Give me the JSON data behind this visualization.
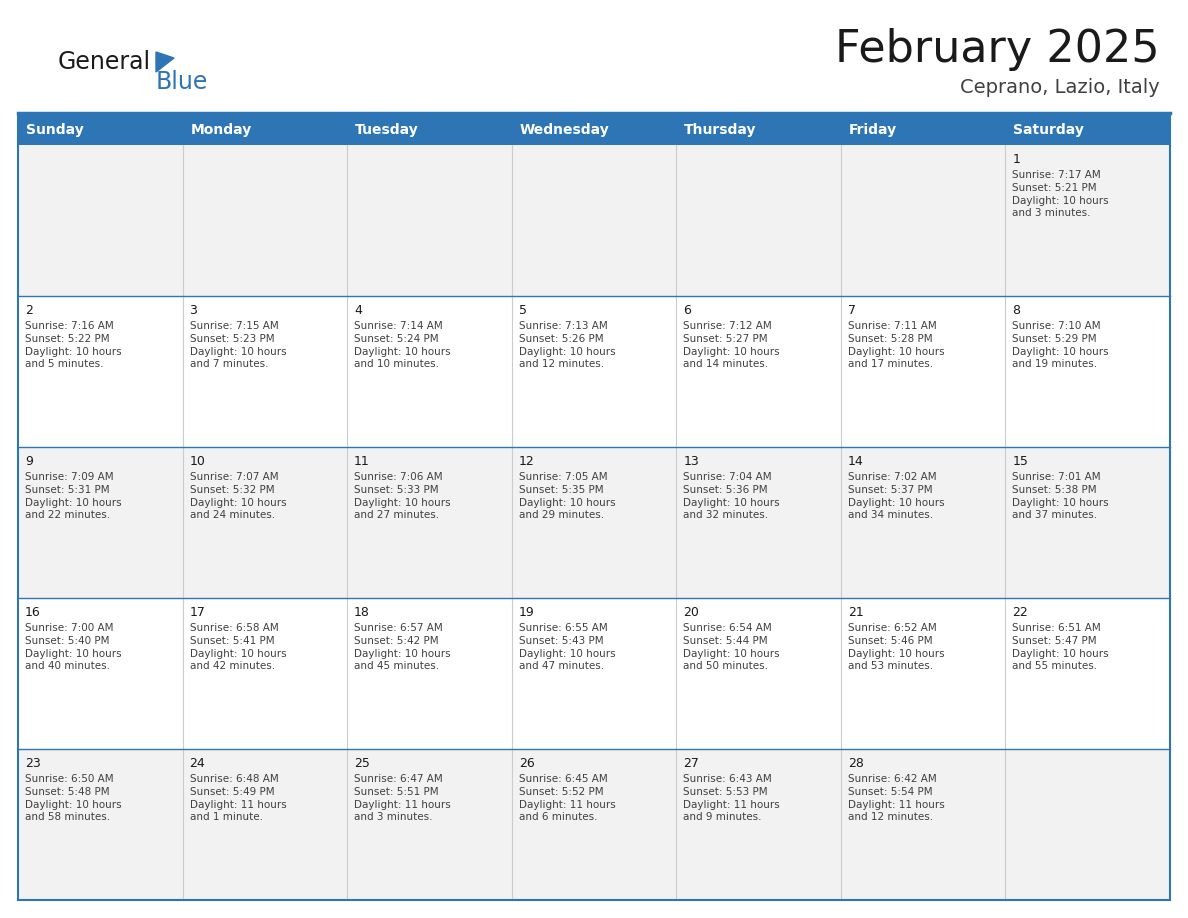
{
  "title": "February 2025",
  "subtitle": "Ceprano, Lazio, Italy",
  "header_bg": "#2E75B6",
  "header_text": "#FFFFFF",
  "row0_bg": "#F2F2F2",
  "row1_bg": "#FFFFFF",
  "row2_bg": "#F2F2F2",
  "row3_bg": "#FFFFFF",
  "row4_bg": "#F2F2F2",
  "border_color": "#2E75B6",
  "cell_border_color": "#C0C0C0",
  "day_headers": [
    "Sunday",
    "Monday",
    "Tuesday",
    "Wednesday",
    "Thursday",
    "Friday",
    "Saturday"
  ],
  "days": [
    {
      "day": 1,
      "col": 6,
      "row": 0,
      "sunrise": "7:17 AM",
      "sunset": "5:21 PM",
      "daylight": "10 hours\nand 3 minutes."
    },
    {
      "day": 2,
      "col": 0,
      "row": 1,
      "sunrise": "7:16 AM",
      "sunset": "5:22 PM",
      "daylight": "10 hours\nand 5 minutes."
    },
    {
      "day": 3,
      "col": 1,
      "row": 1,
      "sunrise": "7:15 AM",
      "sunset": "5:23 PM",
      "daylight": "10 hours\nand 7 minutes."
    },
    {
      "day": 4,
      "col": 2,
      "row": 1,
      "sunrise": "7:14 AM",
      "sunset": "5:24 PM",
      "daylight": "10 hours\nand 10 minutes."
    },
    {
      "day": 5,
      "col": 3,
      "row": 1,
      "sunrise": "7:13 AM",
      "sunset": "5:26 PM",
      "daylight": "10 hours\nand 12 minutes."
    },
    {
      "day": 6,
      "col": 4,
      "row": 1,
      "sunrise": "7:12 AM",
      "sunset": "5:27 PM",
      "daylight": "10 hours\nand 14 minutes."
    },
    {
      "day": 7,
      "col": 5,
      "row": 1,
      "sunrise": "7:11 AM",
      "sunset": "5:28 PM",
      "daylight": "10 hours\nand 17 minutes."
    },
    {
      "day": 8,
      "col": 6,
      "row": 1,
      "sunrise": "7:10 AM",
      "sunset": "5:29 PM",
      "daylight": "10 hours\nand 19 minutes."
    },
    {
      "day": 9,
      "col": 0,
      "row": 2,
      "sunrise": "7:09 AM",
      "sunset": "5:31 PM",
      "daylight": "10 hours\nand 22 minutes."
    },
    {
      "day": 10,
      "col": 1,
      "row": 2,
      "sunrise": "7:07 AM",
      "sunset": "5:32 PM",
      "daylight": "10 hours\nand 24 minutes."
    },
    {
      "day": 11,
      "col": 2,
      "row": 2,
      "sunrise": "7:06 AM",
      "sunset": "5:33 PM",
      "daylight": "10 hours\nand 27 minutes."
    },
    {
      "day": 12,
      "col": 3,
      "row": 2,
      "sunrise": "7:05 AM",
      "sunset": "5:35 PM",
      "daylight": "10 hours\nand 29 minutes."
    },
    {
      "day": 13,
      "col": 4,
      "row": 2,
      "sunrise": "7:04 AM",
      "sunset": "5:36 PM",
      "daylight": "10 hours\nand 32 minutes."
    },
    {
      "day": 14,
      "col": 5,
      "row": 2,
      "sunrise": "7:02 AM",
      "sunset": "5:37 PM",
      "daylight": "10 hours\nand 34 minutes."
    },
    {
      "day": 15,
      "col": 6,
      "row": 2,
      "sunrise": "7:01 AM",
      "sunset": "5:38 PM",
      "daylight": "10 hours\nand 37 minutes."
    },
    {
      "day": 16,
      "col": 0,
      "row": 3,
      "sunrise": "7:00 AM",
      "sunset": "5:40 PM",
      "daylight": "10 hours\nand 40 minutes."
    },
    {
      "day": 17,
      "col": 1,
      "row": 3,
      "sunrise": "6:58 AM",
      "sunset": "5:41 PM",
      "daylight": "10 hours\nand 42 minutes."
    },
    {
      "day": 18,
      "col": 2,
      "row": 3,
      "sunrise": "6:57 AM",
      "sunset": "5:42 PM",
      "daylight": "10 hours\nand 45 minutes."
    },
    {
      "day": 19,
      "col": 3,
      "row": 3,
      "sunrise": "6:55 AM",
      "sunset": "5:43 PM",
      "daylight": "10 hours\nand 47 minutes."
    },
    {
      "day": 20,
      "col": 4,
      "row": 3,
      "sunrise": "6:54 AM",
      "sunset": "5:44 PM",
      "daylight": "10 hours\nand 50 minutes."
    },
    {
      "day": 21,
      "col": 5,
      "row": 3,
      "sunrise": "6:52 AM",
      "sunset": "5:46 PM",
      "daylight": "10 hours\nand 53 minutes."
    },
    {
      "day": 22,
      "col": 6,
      "row": 3,
      "sunrise": "6:51 AM",
      "sunset": "5:47 PM",
      "daylight": "10 hours\nand 55 minutes."
    },
    {
      "day": 23,
      "col": 0,
      "row": 4,
      "sunrise": "6:50 AM",
      "sunset": "5:48 PM",
      "daylight": "10 hours\nand 58 minutes."
    },
    {
      "day": 24,
      "col": 1,
      "row": 4,
      "sunrise": "6:48 AM",
      "sunset": "5:49 PM",
      "daylight": "11 hours\nand 1 minute."
    },
    {
      "day": 25,
      "col": 2,
      "row": 4,
      "sunrise": "6:47 AM",
      "sunset": "5:51 PM",
      "daylight": "11 hours\nand 3 minutes."
    },
    {
      "day": 26,
      "col": 3,
      "row": 4,
      "sunrise": "6:45 AM",
      "sunset": "5:52 PM",
      "daylight": "11 hours\nand 6 minutes."
    },
    {
      "day": 27,
      "col": 4,
      "row": 4,
      "sunrise": "6:43 AM",
      "sunset": "5:53 PM",
      "daylight": "11 hours\nand 9 minutes."
    },
    {
      "day": 28,
      "col": 5,
      "row": 4,
      "sunrise": "6:42 AM",
      "sunset": "5:54 PM",
      "daylight": "11 hours\nand 12 minutes."
    }
  ],
  "num_rows": 5,
  "logo_general_color": "#1A1A1A",
  "logo_blue_color": "#2E75B6",
  "title_color": "#1A1A1A",
  "subtitle_color": "#404040",
  "cell_text_color": "#404040",
  "day_num_color": "#1A1A1A",
  "title_fontsize": 32,
  "subtitle_fontsize": 14,
  "header_fontsize": 10,
  "daynum_fontsize": 9,
  "cell_fontsize": 7.5
}
